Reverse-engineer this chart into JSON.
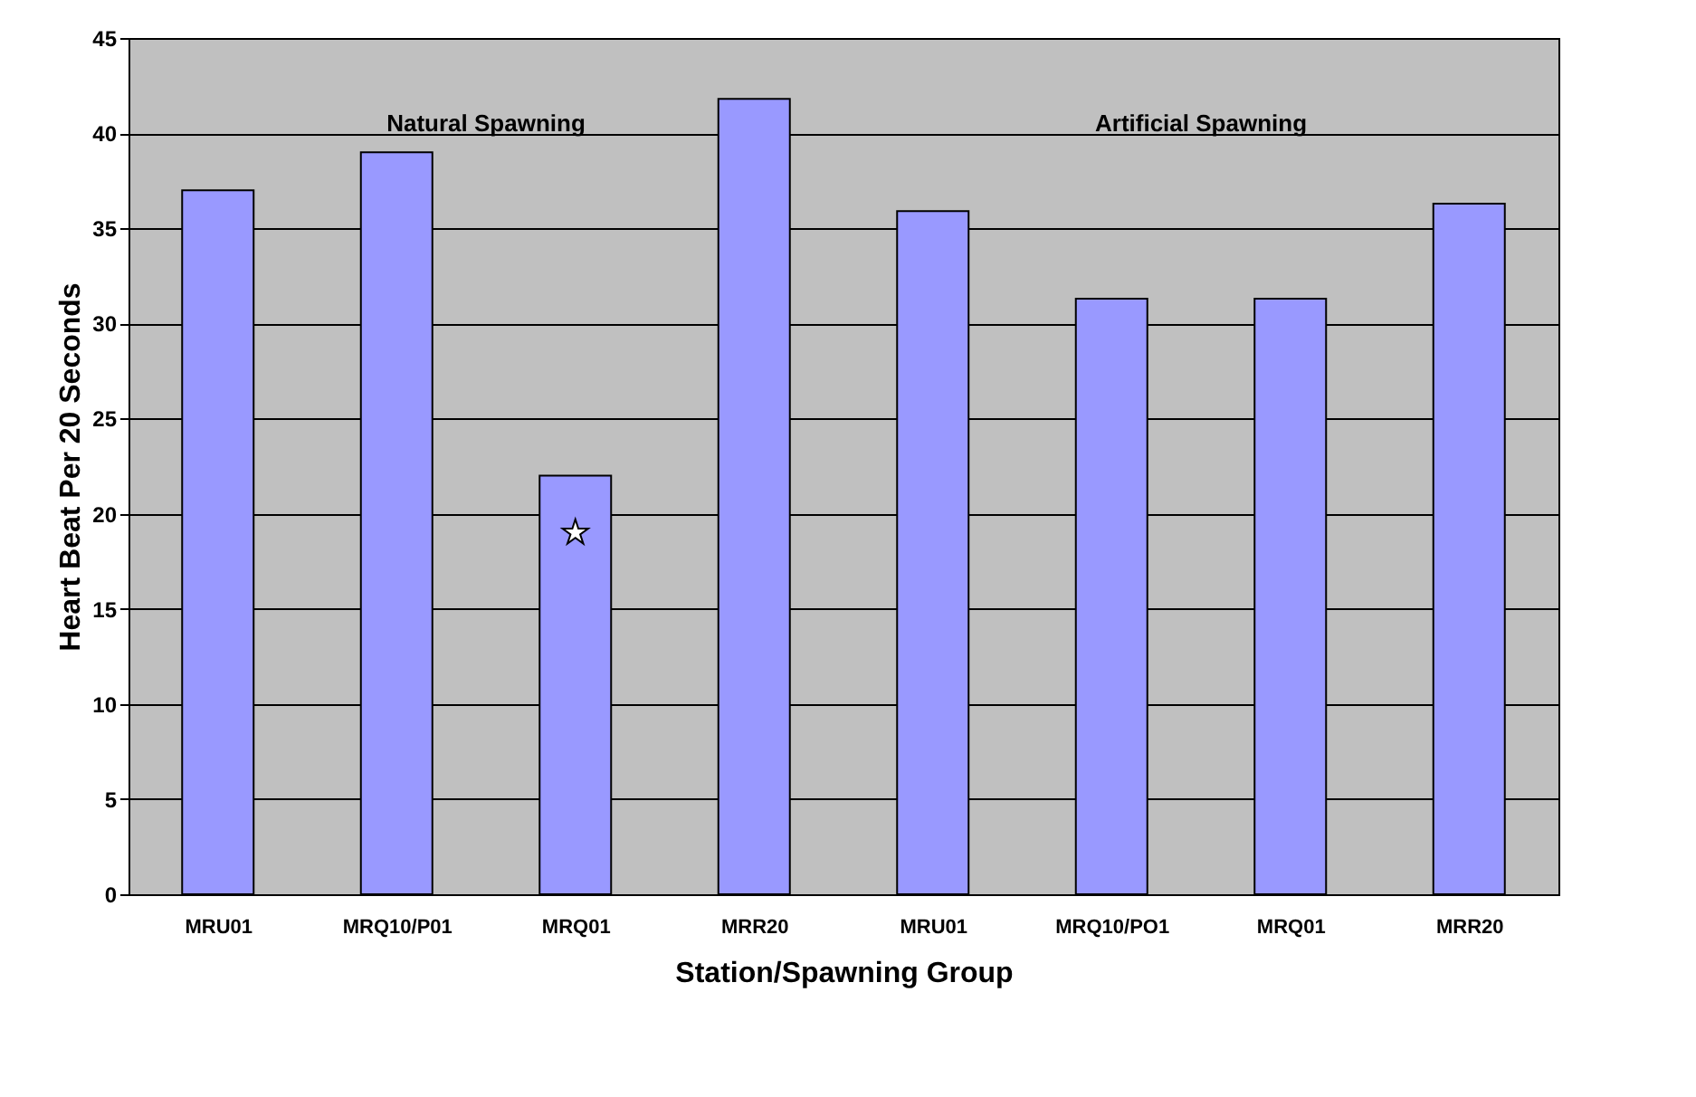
{
  "chart_data": {
    "type": "bar",
    "xlabel": "Station/Spawning Group",
    "ylabel": "Heart Beat Per 20 Seconds",
    "categories": [
      "MRU01",
      "MRQ10/P01",
      "MRQ01",
      "MRR20",
      "MRU01",
      "MRQ10/PO1",
      "MRQ01",
      "MRR20"
    ],
    "series": [
      {
        "color": "#9999ff",
        "values": [
          37,
          39,
          22,
          41.8,
          35.9,
          31.3,
          31.3,
          36.3
        ]
      },
      {
        "type": "scatter",
        "x": [
          "MRQ01"
        ],
        "values": [
          19
        ],
        "color": "#ffffff",
        "marker": "star"
      }
    ],
    "ylim": [
      0,
      45
    ],
    "yticks": [
      0,
      5,
      10,
      15,
      20,
      25,
      30,
      35,
      40,
      45
    ],
    "grid": "y",
    "legend": false,
    "annotations": [
      "Natural Spawning",
      "Artificial Spawning"
    ]
  }
}
